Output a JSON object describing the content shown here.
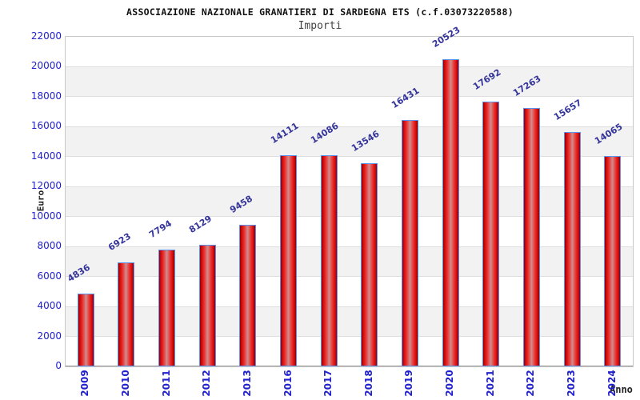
{
  "chart_data": {
    "type": "bar",
    "title": "ASSOCIAZIONE NAZIONALE GRANATIERI DI SARDEGNA ETS (c.f.03073220588)",
    "subtitle": "Importi",
    "xlabel": "Anno",
    "ylabel": "Euro",
    "categories": [
      "2009",
      "2010",
      "2011",
      "2012",
      "2013",
      "2016",
      "2017",
      "2018",
      "2019",
      "2020",
      "2021",
      "2022",
      "2023",
      "2024"
    ],
    "values": [
      4836,
      6923,
      7794,
      8129,
      9458,
      14111,
      14086,
      13546,
      16431,
      20523,
      17692,
      17263,
      15657,
      14065
    ],
    "ylim": [
      0,
      22000
    ],
    "ytick_step": 2000,
    "ytick_labels": [
      "0",
      "2000",
      "4000",
      "6000",
      "8000",
      "10000",
      "12000",
      "14000",
      "16000",
      "18000",
      "20000",
      "22000"
    ],
    "legend_position": "none",
    "grid": "horizontal-gridlines-with-alternating-bands",
    "value_labels_rotation_deg": -32,
    "xtick_rotation_deg": -90,
    "colors": {
      "bar_edge_red": "#8f0000",
      "bar_main_red": "#ee2a2a",
      "bar_center_highlight": "#cf8d8d",
      "bar_border_blue": "#5894f0",
      "axis_tick_label_blue": "#2121cd",
      "value_label_navy": "#34349a",
      "band_gray": "#f2f2f2",
      "gridline_gray": "#dedede",
      "plot_border_gray": "#c8c8c8",
      "baseline_gray": "#999999",
      "title_color": "#111111",
      "subtitle_color": "#444444",
      "axis_title_color": "#222222",
      "background": "#ffffff"
    }
  }
}
